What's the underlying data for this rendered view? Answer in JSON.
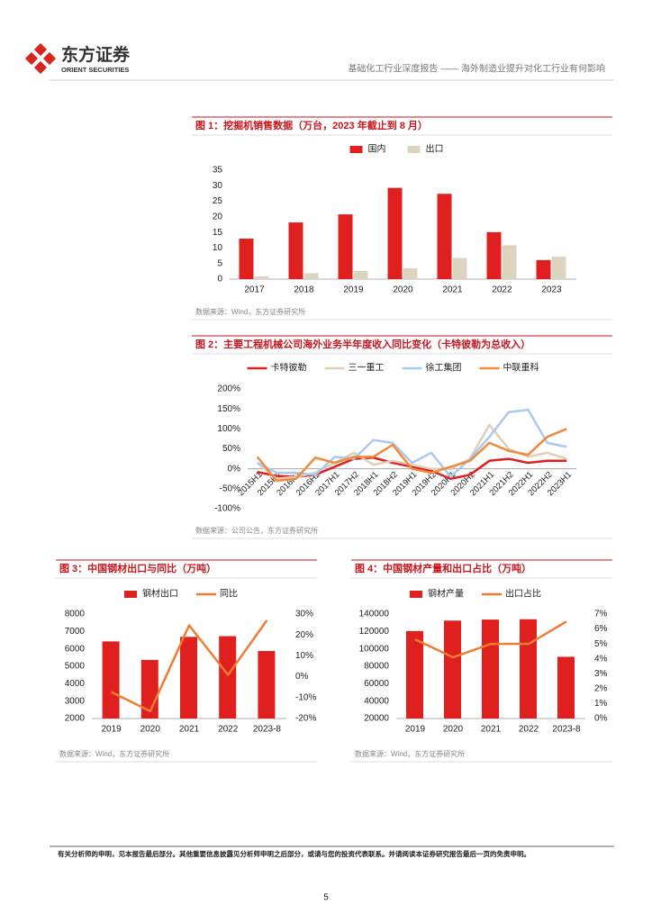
{
  "header": {
    "logo_cn": "东方证券",
    "logo_en": "ORIENT SECURITIES",
    "report_title": "基础化工行业深度报告 —— 海外制造业提升对化工行业有何影响"
  },
  "chart_data": [
    {
      "type": "bar",
      "title": "图 1：挖掘机销售数据（万台，2023 年截止到 8 月）",
      "source": "数据来源：Wind，东方证券研究所",
      "categories": [
        "2017",
        "2018",
        "2019",
        "2020",
        "2021",
        "2022",
        "2023"
      ],
      "series": [
        {
          "name": "国内",
          "color": "#e0201e",
          "values": [
            13,
            18.2,
            20.8,
            29.3,
            27.4,
            15.1,
            6.1
          ]
        },
        {
          "name": "出口",
          "color": "#ddd4c0",
          "values": [
            0.9,
            1.9,
            2.6,
            3.5,
            6.8,
            10.9,
            7.2
          ]
        }
      ],
      "ylim": [
        0,
        35
      ],
      "yticks": [
        0,
        5,
        10,
        15,
        20,
        25,
        30,
        35
      ],
      "legend": "top"
    },
    {
      "type": "line",
      "title": "图 2：主要工程机械公司海外业务半年度收入同比变化（卡特彼勒为总收入）",
      "source": "数据来源：公司公告，东方证券研究所",
      "categories": [
        "2015H1",
        "2015H2",
        "2016H1",
        "2016H2",
        "2017H1",
        "2017H2",
        "2018H1",
        "2018H2",
        "2019H1",
        "2019H2",
        "2020H1",
        "2020H2",
        "2021H1",
        "2021H2",
        "2022H1",
        "2022H2",
        "2023H1"
      ],
      "series": [
        {
          "name": "卡特彼勒",
          "color": "#e0201e",
          "values": [
            -8,
            -18,
            -20,
            -15,
            5,
            25,
            28,
            15,
            5,
            -5,
            -25,
            -15,
            20,
            25,
            15,
            20,
            20
          ]
        },
        {
          "name": "三一重工",
          "color": "#ddd0b8",
          "values": [
            15,
            -25,
            -20,
            -10,
            15,
            40,
            10,
            20,
            10,
            0,
            0,
            25,
            110,
            50,
            30,
            40,
            25
          ]
        },
        {
          "name": "徐工集团",
          "color": "#a9c9f2",
          "values": [
            15,
            -10,
            -10,
            -15,
            30,
            25,
            72,
            65,
            15,
            40,
            -20,
            25,
            80,
            142,
            148,
            65,
            55
          ]
        },
        {
          "name": "中联重科",
          "color": "#f08a3c",
          "values": [
            30,
            -30,
            -25,
            28,
            15,
            30,
            30,
            60,
            0,
            -10,
            5,
            20,
            65,
            45,
            35,
            80,
            100
          ]
        }
      ],
      "ylim": [
        -100,
        200
      ],
      "yticks": [
        {
          "value": -100,
          "label": "-100%"
        },
        {
          "value": -50,
          "label": "-50%"
        },
        {
          "value": 0,
          "label": "0%"
        },
        {
          "value": 50,
          "label": "50%"
        },
        {
          "value": 100,
          "label": "100%"
        },
        {
          "value": 150,
          "label": "150%"
        },
        {
          "value": 200,
          "label": "200%"
        }
      ],
      "legend": "top"
    },
    {
      "type": "bar",
      "title": "图 3：中国钢材出口与同比（万吨）",
      "source": "数据来源：Wind，东方证券研究所",
      "categories": [
        "2019",
        "2020",
        "2021",
        "2022",
        "2023-8"
      ],
      "series": [
        {
          "name": "钢材出口",
          "color": "#e0201e",
          "values": [
            6429,
            5367,
            6690,
            6732,
            5878
          ]
        },
        {
          "name": "同比",
          "color": "#ee7d31",
          "type": "line",
          "axis": "y2",
          "values": [
            -7.3,
            -16.5,
            24.6,
            0.9,
            27
          ]
        }
      ],
      "ylim": [
        2000,
        8000
      ],
      "yticks": [
        2000,
        3000,
        4000,
        5000,
        6000,
        7000,
        8000
      ],
      "y2lim": [
        -20,
        30
      ],
      "y2ticks": [
        {
          "value": -20,
          "label": "-20%"
        },
        {
          "value": -10,
          "label": "-10%"
        },
        {
          "value": 0,
          "label": "0%"
        },
        {
          "value": 10,
          "label": "10%"
        },
        {
          "value": 20,
          "label": "20%"
        },
        {
          "value": 30,
          "label": "30%"
        }
      ],
      "legend": "top"
    },
    {
      "type": "bar",
      "title": "图 4：中国钢材产量和出口占比（万吨）",
      "source": "数据来源：Wind，东方证券研究所",
      "categories": [
        "2019",
        "2020",
        "2021",
        "2022",
        "2023-8"
      ],
      "series": [
        {
          "name": "钢材产量",
          "color": "#e0201e",
          "values": [
            120477,
            132489,
            133667,
            134034,
            90900
          ]
        },
        {
          "name": "出口占比",
          "color": "#ee7d31",
          "type": "line",
          "axis": "y2",
          "values": [
            5.3,
            4.1,
            5.0,
            5.0,
            6.5
          ]
        }
      ],
      "ylim": [
        20000,
        140000
      ],
      "yticks": [
        20000,
        40000,
        60000,
        80000,
        100000,
        120000,
        140000
      ],
      "y2lim": [
        0,
        7
      ],
      "y2ticks": [
        {
          "value": 0,
          "label": "0%"
        },
        {
          "value": 1,
          "label": "1%"
        },
        {
          "value": 2,
          "label": "2%"
        },
        {
          "value": 3,
          "label": "3%"
        },
        {
          "value": 4,
          "label": "4%"
        },
        {
          "value": 5,
          "label": "5%"
        },
        {
          "value": 6,
          "label": "6%"
        },
        {
          "value": 7,
          "label": "7%"
        }
      ],
      "legend": "top"
    }
  ],
  "footer": {
    "disclaimer": "有关分析师的申明，见本报告最后部分。其他重要信息披露见分析师申明之后部分，或请与您的投资代表联系。并请阅读本证券研究报告最后一页的免责申明。",
    "page": "5"
  }
}
